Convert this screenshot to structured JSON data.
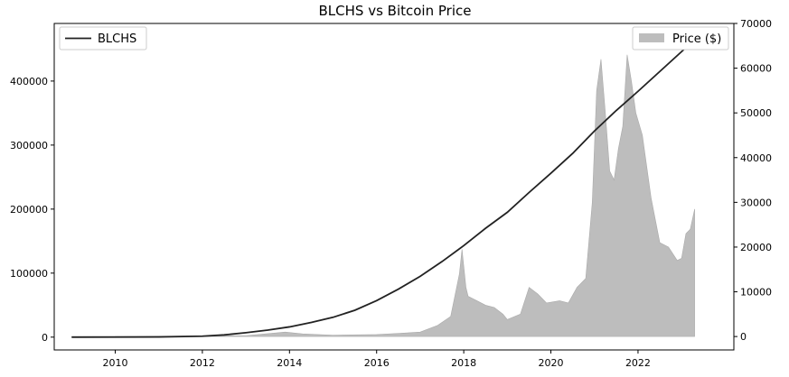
{
  "chart_data": {
    "type": "line",
    "title": "BLCHS vs Bitcoin Price",
    "xlabel": "",
    "ylabel": "",
    "y2label": "",
    "xlim": [
      2008.6,
      2024.2
    ],
    "ylim": [
      -20000,
      490000
    ],
    "y2lim": [
      -3000,
      70000
    ],
    "x_ticks": [
      2010,
      2012,
      2014,
      2016,
      2018,
      2020,
      2022
    ],
    "x_tick_labels": [
      "2010",
      "2012",
      "2014",
      "2016",
      "2018",
      "2020",
      "2022"
    ],
    "y_ticks": [
      0,
      100000,
      200000,
      300000,
      400000
    ],
    "y_tick_labels": [
      "0",
      "100000",
      "200000",
      "300000",
      "400000"
    ],
    "y2_ticks": [
      0,
      10000,
      20000,
      30000,
      40000,
      50000,
      60000,
      70000
    ],
    "y2_tick_labels": [
      "0",
      "10000",
      "20000",
      "30000",
      "40000",
      "50000",
      "60000",
      "70000"
    ],
    "grid": false,
    "legend_left": {
      "placement": "top-left",
      "label": "BLCHS",
      "color": "#222222"
    },
    "legend_right": {
      "placement": "top-right",
      "label": "Price ($)",
      "color": "#bdbdbd"
    },
    "series": [
      {
        "name": "BLCHS",
        "type": "line",
        "axis": "left",
        "color": "#222222",
        "x": [
          2009.0,
          2010.0,
          2011.0,
          2012.0,
          2012.5,
          2013.0,
          2013.5,
          2014.0,
          2014.5,
          2015.0,
          2015.5,
          2016.0,
          2016.5,
          2017.0,
          2017.5,
          2018.0,
          2018.5,
          2019.0,
          2019.5,
          2020.0,
          2020.5,
          2021.0,
          2021.5,
          2022.0,
          2022.5,
          2023.0,
          2023.3
        ],
        "y": [
          0,
          100,
          300,
          1500,
          3500,
          7000,
          11000,
          16000,
          23000,
          31000,
          42000,
          57000,
          75000,
          95000,
          118000,
          143000,
          170000,
          195000,
          226000,
          256000,
          287000,
          322000,
          354000,
          384000,
          415000,
          446000,
          465000
        ]
      },
      {
        "name": "Price ($)",
        "type": "area",
        "axis": "right",
        "color": "#bdbdbd",
        "x": [
          2009.0,
          2013.0,
          2013.9,
          2014.0,
          2014.3,
          2015.0,
          2016.0,
          2016.5,
          2017.0,
          2017.4,
          2017.7,
          2017.9,
          2017.96,
          2018.05,
          2018.1,
          2018.3,
          2018.5,
          2018.7,
          2018.9,
          2019.0,
          2019.3,
          2019.5,
          2019.7,
          2019.9,
          2020.2,
          2020.4,
          2020.6,
          2020.8,
          2020.95,
          2021.05,
          2021.15,
          2021.25,
          2021.35,
          2021.45,
          2021.55,
          2021.65,
          2021.75,
          2021.85,
          2021.95,
          2022.1,
          2022.3,
          2022.5,
          2022.7,
          2022.9,
          2023.0,
          2023.1,
          2023.2,
          2023.3
        ],
        "y": [
          0,
          200,
          1000,
          900,
          600,
          300,
          450,
          700,
          1000,
          2500,
          4500,
          14000,
          19500,
          11000,
          9000,
          8000,
          7000,
          6500,
          5000,
          3800,
          5000,
          11000,
          9500,
          7500,
          8000,
          7500,
          11000,
          13000,
          30000,
          55000,
          62000,
          50000,
          37000,
          35000,
          42000,
          47000,
          63000,
          57000,
          50000,
          45000,
          31000,
          21000,
          20000,
          17000,
          17500,
          23000,
          24000,
          28500
        ]
      }
    ]
  }
}
